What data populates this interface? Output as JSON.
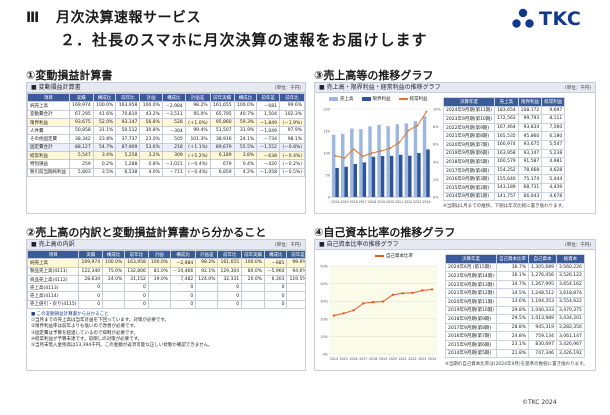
{
  "header": {
    "section_num": "Ⅲ",
    "section_title": "月次決算速報サービス",
    "subtitle": "２．社長のスマホに月次決算の速報をお届けします",
    "logo_text": "TKC",
    "logo_color": "#0f3a89"
  },
  "q1": {
    "title": "①変動損益計算書",
    "panel_title": "■ 変動損益計算書",
    "unit": "(単位：千円)",
    "columns": [
      "項目",
      "実績",
      "構成比",
      "前年比",
      "計画",
      "構成比",
      "計画差",
      "前年実績",
      "構成比",
      "前年差",
      "前年比"
    ],
    "rows": [
      [
        "純売上高",
        "169,974",
        "100.0%",
        "163,958",
        "100.0%",
        "－2,984",
        "98.2%",
        "161,655",
        "100.0%",
        "－681",
        "99.6%"
      ],
      [
        "変動費合計",
        "67,295",
        "41.6%",
        "70,810",
        "43.2%",
        "－3,511",
        "95.0%",
        "65,795",
        "40.7%",
        "1,504",
        "102.3%"
      ],
      [
        "限界利益",
        "93,675",
        "52.0%",
        "93,147",
        "56.8%",
        "528",
        "(＋1.0%)",
        "95,860",
        "59.3%",
        "－1,849",
        "(－1.9%)"
      ],
      [
        "人件費",
        "50,858",
        "31.1%",
        "50,512",
        "30.8%",
        "－304",
        "99.4%",
        "51,507",
        "31.9%",
        "－1,049",
        "97.9%"
      ],
      [
        "その他固定費",
        "38,342",
        "23.8%",
        "37,737",
        "23.0%",
        "505",
        "101.3%",
        "38,916",
        "24.1%",
        "－734",
        "98.1%"
      ],
      [
        "固定費合計",
        "88,127",
        "54.7%",
        "87,909",
        "53.6%",
        "218",
        "(＋1.1%)",
        "89,679",
        "55.5%",
        "－1,552",
        "(－0.8%)"
      ],
      [
        "経常利益",
        "5,547",
        "3.4%",
        "5,258",
        "3.2%",
        "309",
        "(＋5.2%)",
        "6,189",
        "3.8%",
        "－638",
        "(－0.4%)"
      ],
      [
        "特別損益",
        "259",
        "0.2%",
        "1,288",
        "0.8%",
        "－1,021",
        "(－0.4%)",
        "679",
        "0.4%",
        "－420",
        "(－0.2%)"
      ],
      [
        "税引前当期純利益",
        "5,803",
        "3.5%",
        "6,538",
        "4.0%",
        "－711",
        "(－0.4%)",
        "6,859",
        "4.2%",
        "－1,058",
        "(－0.5%)"
      ]
    ]
  },
  "q3": {
    "title": "③売上高等の推移グラフ",
    "panel_title": "■ 売上高・限界利益・経常利益の推移グラフ",
    "unit": "(単位：千円)",
    "legend": [
      "売上高",
      "限界利益",
      "経常利益"
    ],
    "table_columns": [
      "決算年度",
      "売上高",
      "限界利益",
      "経常利益"
    ],
    "table_rows": [
      [
        "2024年9月期(第11期)",
        "183,654",
        "108,172",
        "9,697"
      ],
      [
        "2023年9月期(第10期)",
        "172,563",
        "99,793",
        "8,111"
      ],
      [
        "2022年9月期(第9期)",
        "167,464",
        "93,834",
        "7,560"
      ],
      [
        "2021年9月期(第8期)",
        "165,535",
        "95,860",
        "6,180"
      ],
      [
        "2020年9月期(第7期)",
        "160,974",
        "93,675",
        "5,547"
      ],
      [
        "2019年9月期(第6期)",
        "163,958",
        "93,147",
        "5,238"
      ],
      [
        "2018年9月期(第5期)",
        "160,579",
        "91,587",
        "4,981"
      ],
      [
        "2017年9月期(第4期)",
        "154,252",
        "78,668",
        "4,628"
      ],
      [
        "2016年9月期(第3期)",
        "155,640",
        "75,174",
        "5,444"
      ],
      [
        "2015年9月期(第2期)",
        "143,189",
        "68,731",
        "4,439"
      ],
      [
        "2014年9月期(第1期)",
        "141,757",
        "66,043",
        "4,678"
      ]
    ],
    "footnote": "※当期は1月までの推移。下期は年次比較に置き換わります。"
  },
  "q2": {
    "title": "②売上高の内訳と変動損益計算書から分かること",
    "panel_title": "■ 売上高の内訳",
    "unit": "(単位：千円)",
    "columns": [
      "項目",
      "実績",
      "構成比",
      "前年比",
      "計画",
      "構成比",
      "計画差",
      "前年比",
      "前年実績",
      "構成比",
      "前年差",
      "前年比"
    ],
    "rows": [
      [
        "純売上高",
        "169,974",
        "100.0%",
        "163,958",
        "100.0%",
        "－2,984",
        "98.2%",
        "161,655",
        "100.0%",
        "－681",
        "99.6%",
        ""
      ],
      [
        "製品売上高(4111)",
        "122,340",
        "75.0%",
        "132,806",
        "81.0%",
        "－10,466",
        "92.1%",
        "129,304",
        "80.0%",
        "－5,964",
        "94.6%",
        ""
      ],
      [
        "商品売上高(4112)",
        "28,634",
        "24.0%",
        "31,152",
        "19.0%",
        "7,482",
        "124.0%",
        "32,331",
        "20.0%",
        "6,303",
        "119.5%",
        ""
      ],
      [
        "売上高(4113)",
        "0",
        "",
        "0",
        "",
        "0",
        "",
        "0",
        "",
        "0",
        "",
        ""
      ],
      [
        "売上高(4114)",
        "0",
        "",
        "0",
        "",
        "0",
        "",
        "0",
        "",
        "0",
        "",
        ""
      ],
      [
        "売上値引・戻り(4115)",
        "0",
        "",
        "0",
        "",
        "0",
        "",
        "0",
        "",
        "0",
        "",
        ""
      ]
    ],
    "notes_title": "■ この変動損益計算書から分かること",
    "notes": [
      "①当月までの売上高は当年計画を下回っています。対策が必要です。",
      "②限界利益率は前年よりも低いので改善が必要です。",
      "③固定費は予算を超過しているので抑制が必要です。",
      "④経常利益が予算未達です。前倒しの対策が必要です。",
      "⑤当月末借入金残高は13,394千円。この金額が返済可能な正しい状態か確認できません。"
    ]
  },
  "q4": {
    "title": "④自己資本比率の推移グラフ",
    "panel_title": "■ 自己資本比率の推移グラフ",
    "unit": "(単位：千円)",
    "legend": [
      "自己資本比率"
    ],
    "table_columns": [
      "決算年度",
      "自己資本比率",
      "自己資本",
      "総資本"
    ],
    "table_rows": [
      [
        "2024年6月 (第15期)",
        "36.7%",
        "1,305,689",
        "3,560,226"
      ],
      [
        "2023年9月期(第14期)",
        "36.1%",
        "1,276,456",
        "3,526,122"
      ],
      [
        "2022年9月期(第13期)",
        "34.7%",
        "1,267,995",
        "3,654,162"
      ],
      [
        "2021年9月期(第12期)",
        "34.5%",
        "1,248,512",
        "3,618,874"
      ],
      [
        "2020年9月期(第11期)",
        "33.6%",
        "1,194,353",
        "3,554,622"
      ],
      [
        "2019年9月期(第10期)",
        "29.8%",
        "1,040,333",
        "3,470,375"
      ],
      [
        "2018年9月期(第9期)",
        "29.5%",
        "1,013,989",
        "3,434,201"
      ],
      [
        "2017年9月期(第8期)",
        "28.8%",
        "945,319",
        "3,282,356"
      ],
      [
        "2016年9月期(第7期)",
        "24.8%",
        "759,134",
        "3,061,147"
      ],
      [
        "2015年9月期(第6期)",
        "23.1%",
        "830,697",
        "3,426,967"
      ],
      [
        "2014年9月期(第5期)",
        "21.8%",
        "747,346",
        "3,426,192"
      ]
    ],
    "footnote": "※当期の自己資本比率は(2024年9月)を基準の数値に置き換わります。"
  },
  "chart_data": [
    {
      "type": "bar",
      "title": "売上高・限界利益・経常利益の推移グラフ",
      "categories": [
        "2014",
        "2015",
        "2016",
        "2017",
        "2018",
        "2019",
        "2020",
        "2021",
        "2022",
        "2023",
        "2024"
      ],
      "series": [
        {
          "name": "売上高",
          "values": [
            141757,
            143189,
            155640,
            154252,
            160579,
            163958,
            160974,
            165535,
            167464,
            172563,
            183654
          ]
        },
        {
          "name": "限界利益",
          "values": [
            66043,
            68731,
            75174,
            78668,
            91587,
            93147,
            93675,
            95860,
            93834,
            99793,
            108172
          ]
        },
        {
          "name": "経常利益",
          "values": [
            4678,
            4439,
            5444,
            4628,
            4981,
            5238,
            5547,
            6180,
            7560,
            8111,
            9697
          ]
        }
      ],
      "ylim": [
        0,
        200000
      ],
      "y2lim": [
        0,
        10
      ],
      "xlabel": "",
      "ylabel": ""
    },
    {
      "type": "line",
      "title": "自己資本比率の推移グラフ",
      "categories": [
        "2014",
        "2015",
        "2016",
        "2017",
        "2018",
        "2019",
        "2020",
        "2021",
        "2022",
        "2023",
        "2024"
      ],
      "series": [
        {
          "name": "自己資本比率",
          "values": [
            21.8,
            23.1,
            24.8,
            28.8,
            29.5,
            29.8,
            33.6,
            34.5,
            34.7,
            36.1,
            36.7
          ]
        }
      ],
      "ylim": [
        0,
        50
      ],
      "xlabel": "",
      "ylabel": "%"
    }
  ],
  "footer": {
    "copyright": "©TKC 2024"
  },
  "colors": {
    "sales": "#9db7df",
    "margin": "#2f5597",
    "ordinary": "#e07a2a",
    "equity": "#e05a2a",
    "accent": "#3b5a9a"
  }
}
